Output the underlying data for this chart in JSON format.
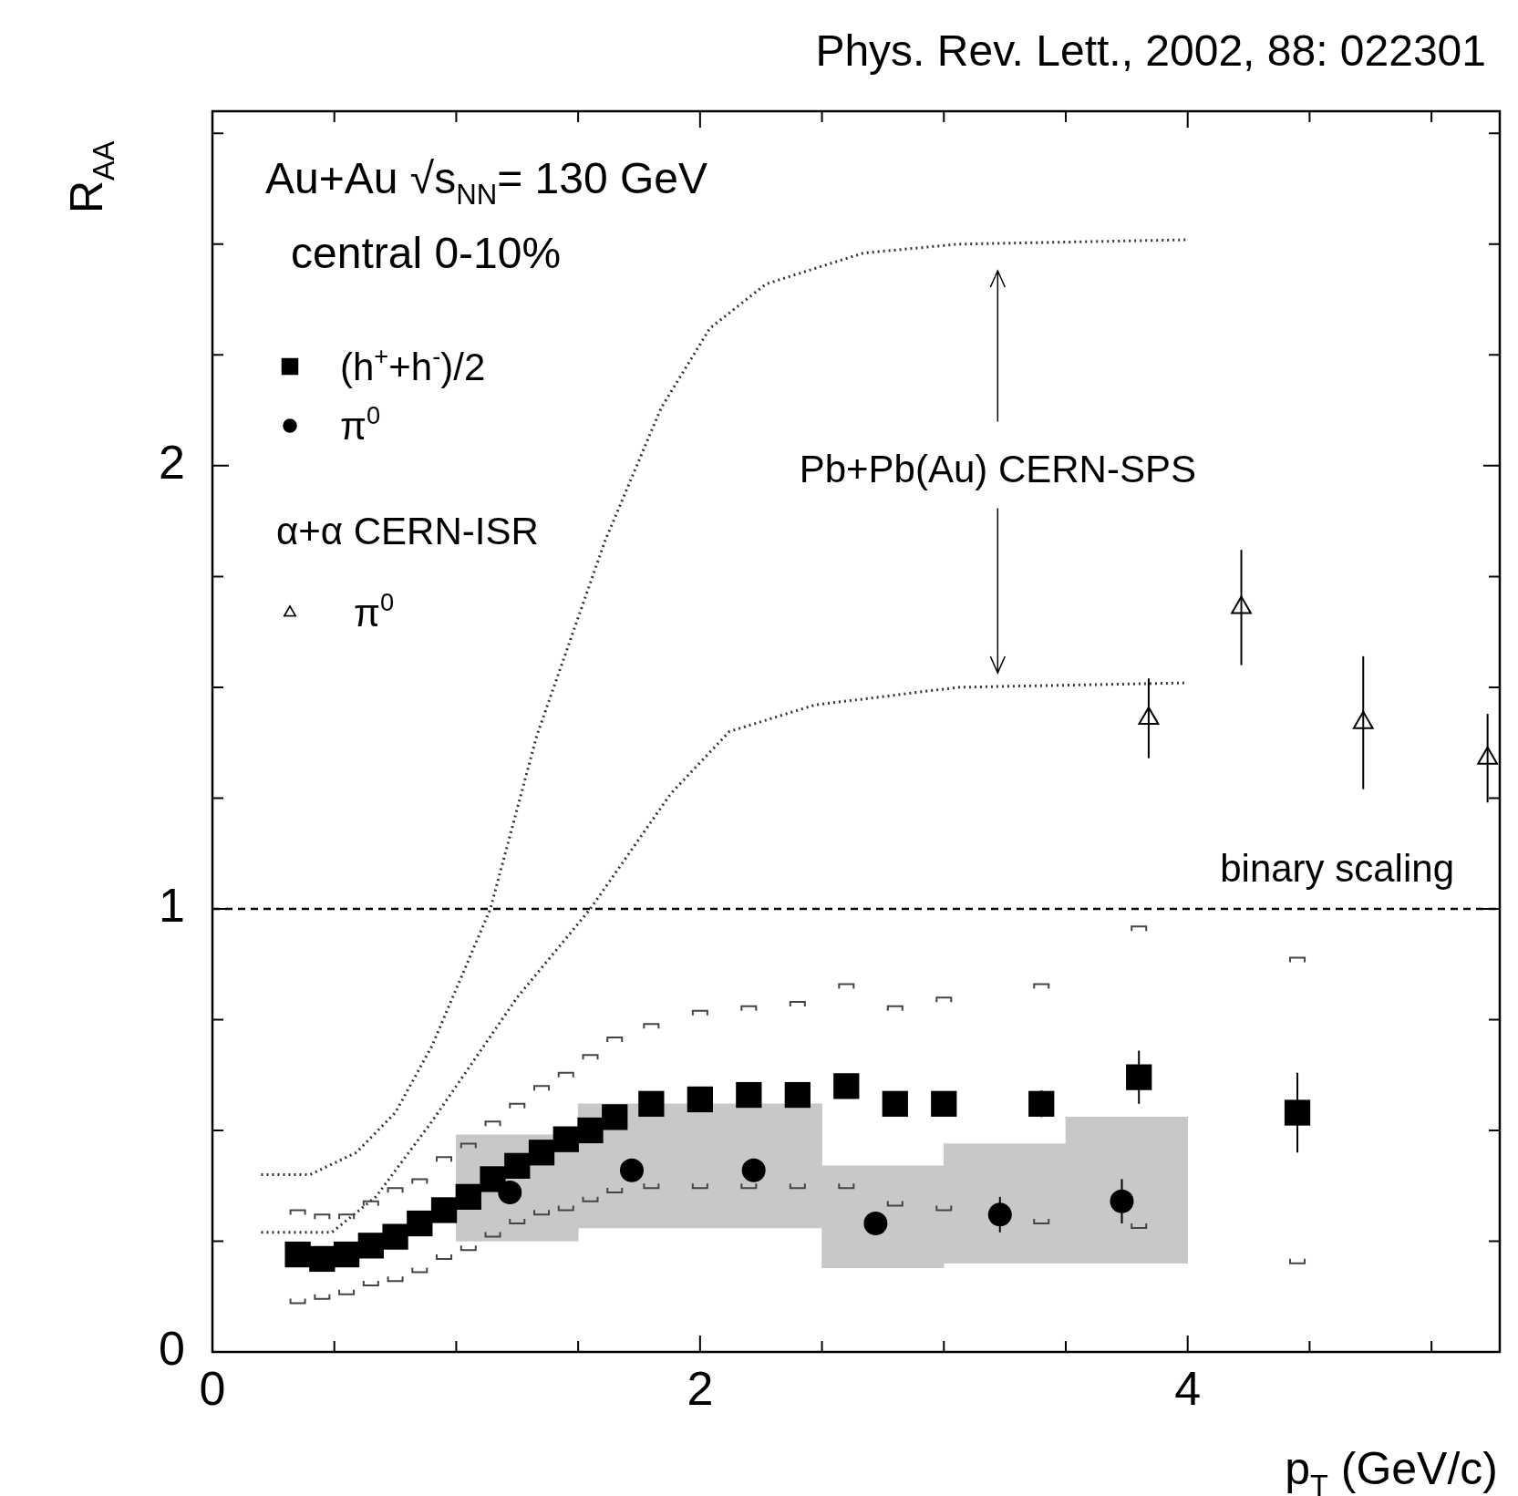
{
  "chart_data": {
    "type": "scatter",
    "xlabel": "p$_{T}$ (GeV/c)",
    "ylabel": "R$_{AA}$",
    "xlim": [
      0,
      5.28
    ],
    "ylim": [
      0,
      2.8
    ],
    "xticks": [
      0,
      {
        "value": 0.5,
        "label": null
      },
      {
        "value": 1,
        "label": null
      },
      {
        "value": 1.5,
        "label": null
      },
      2,
      {
        "value": 2.5,
        "label": null
      },
      {
        "value": 3,
        "label": null
      },
      {
        "value": 3.5,
        "label": null
      },
      4,
      {
        "value": 4.5,
        "label": null
      },
      {
        "value": 5,
        "label": null
      }
    ],
    "yticks": [
      0,
      {
        "value": 0.25,
        "label": null
      },
      {
        "value": 0.5,
        "label": null
      },
      {
        "value": 0.75,
        "label": null
      },
      1,
      {
        "value": 1.25,
        "label": null
      },
      {
        "value": 1.5,
        "label": null
      },
      {
        "value": 1.75,
        "label": null
      },
      2,
      {
        "value": 2.25,
        "label": null
      },
      {
        "value": 2.5,
        "label": null
      },
      {
        "value": 2.75,
        "label": null
      }
    ],
    "grid": false,
    "legend": "top left",
    "annotations": [
      "Phys. Rev. Lett., 2002, 88: 022301",
      "Au+Au √s$_{NN}$= 130 GeV",
      "central 0-10%",
      "Pb+Pb(Au) CERN-SPS",
      "α+α CERN-ISR"
    ],
    "ref_lines": [
      {
        "axis": "y",
        "value": 1,
        "label": "binary scaling",
        "line_style": "dashed",
        "color": "#000000"
      }
    ],
    "series": [
      {
        "type": "line",
        "color": "#333333",
        "line_style": "dotted",
        "marker": "none",
        "x": [
          0.2,
          0.4,
          0.59,
          0.75,
          0.9,
          1.14,
          1.33,
          1.61,
          1.84,
          2.04,
          2.27,
          2.67,
          3.06,
          4.0
        ],
        "values": [
          0.4,
          0.4,
          0.45,
          0.54,
          0.69,
          1.0,
          1.39,
          1.83,
          2.13,
          2.31,
          2.41,
          2.48,
          2.5,
          2.51
        ]
      },
      {
        "type": "line",
        "color": "#333333",
        "line_style": "dotted",
        "marker": "none",
        "x": [
          0.2,
          0.49,
          0.67,
          0.9,
          1.25,
          1.55,
          1.88,
          2.12,
          2.47,
          3.06,
          4.0
        ],
        "values": [
          0.27,
          0.27,
          0.35,
          0.52,
          0.8,
          1.0,
          1.26,
          1.4,
          1.46,
          1.5,
          1.51
        ]
      },
      {
        "name": "(h$^{+}$+h$^{-}$)/2",
        "color": "#000000",
        "marker": "square",
        "x": [
          0.35,
          0.45,
          0.55,
          0.65,
          0.75,
          0.85,
          0.95,
          1.05,
          1.15,
          1.25,
          1.35,
          1.45,
          1.55,
          1.65,
          1.8,
          2.0,
          2.2,
          2.4,
          2.6,
          2.8,
          3.0,
          3.4,
          3.8,
          4.45
        ],
        "values": [
          0.22,
          0.21,
          0.22,
          0.24,
          0.26,
          0.29,
          0.32,
          0.35,
          0.39,
          0.42,
          0.45,
          0.48,
          0.5,
          0.53,
          0.56,
          0.57,
          0.58,
          0.58,
          0.6,
          0.56,
          0.56,
          0.56,
          0.62,
          0.54
        ],
        "errors": [
          null,
          null,
          null,
          null,
          null,
          null,
          null,
          null,
          null,
          null,
          null,
          null,
          null,
          null,
          null,
          null,
          null,
          null,
          null,
          null,
          0.02,
          0.03,
          0.06,
          0.09
        ]
      },
      {
        "type": "bar",
        "color": "#c8c8c8",
        "x": [
          1.25,
          1.75,
          2.25,
          2.75,
          3.25,
          3.75
        ],
        "base": [
          0.25,
          0.28,
          0.28,
          0.19,
          0.2,
          0.2
        ],
        "values": [
          0.24,
          0.28,
          0.28,
          0.23,
          0.27,
          0.33
        ]
      },
      {
        "color": "#444444",
        "marker": "cross",
        "x": [
          0.35,
          0.45,
          0.55,
          0.65,
          0.75,
          0.85,
          0.95,
          1.05,
          1.15,
          1.25,
          1.35,
          1.45,
          1.55,
          1.65,
          1.8,
          2.0,
          2.2,
          2.4,
          2.6,
          2.8,
          3.0,
          3.4,
          3.8,
          4.45
        ],
        "values": [
          0.11,
          0.12,
          0.13,
          0.15,
          0.16,
          0.18,
          0.21,
          0.23,
          0.26,
          0.29,
          0.31,
          0.32,
          0.34,
          0.36,
          0.37,
          0.37,
          0.37,
          0.37,
          0.37,
          0.33,
          0.32,
          0.29,
          0.28,
          0.2
        ]
      },
      {
        "color": "#444444",
        "marker": "cross",
        "x": [
          0.35,
          0.45,
          0.55,
          0.65,
          0.75,
          0.85,
          0.95,
          1.05,
          1.15,
          1.25,
          1.35,
          1.45,
          1.55,
          1.65,
          1.8,
          2.0,
          2.2,
          2.4,
          2.6,
          2.8,
          3.0,
          3.4,
          3.8,
          4.45
        ],
        "values": [
          0.32,
          0.31,
          0.31,
          0.34,
          0.37,
          0.39,
          0.44,
          0.47,
          0.52,
          0.56,
          0.6,
          0.63,
          0.67,
          0.71,
          0.74,
          0.77,
          0.78,
          0.79,
          0.83,
          0.78,
          0.8,
          0.83,
          0.96,
          0.89
        ]
      },
      {
        "name": "π$^{0}$",
        "color": "#000000",
        "marker": "circle",
        "x": [
          1.22,
          1.72,
          2.22,
          2.72,
          3.23,
          3.73
        ],
        "values": [
          0.36,
          0.41,
          0.41,
          0.29,
          0.31,
          0.34
        ],
        "errors": [
          null,
          null,
          0.02,
          0.02,
          0.04,
          0.05
        ]
      },
      {
        "name": "π$^{0}$",
        "color": "#000000",
        "marker": "triangle",
        "x": [
          3.84,
          4.22,
          4.72,
          5.23
        ],
        "values": [
          1.43,
          1.68,
          1.42,
          1.34
        ],
        "errors": [
          0.09,
          0.13,
          0.15,
          0.1
        ]
      }
    ]
  }
}
